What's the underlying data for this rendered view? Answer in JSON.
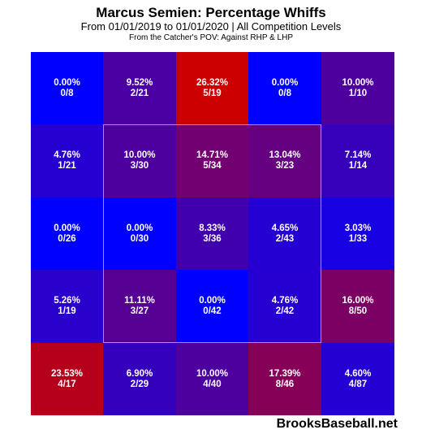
{
  "header": {
    "title": "Marcus Semien: Percentage Whiffs",
    "subtitle": "From 01/01/2019 to 01/01/2020 | All Competition Levels",
    "subtitle2": "From the Catcher's POV:   Against RHP & LHP"
  },
  "watermark": "BrooksBaseball.net",
  "chart_data": {
    "type": "heatmap",
    "title": "Marcus Semien: Percentage Whiffs",
    "rows": 5,
    "cols": 5,
    "strike_zone": "inner 3x3",
    "color_scale": {
      "low": "#0000ff",
      "high": "#cc0000",
      "max_pct": 26.32
    },
    "cells": [
      [
        {
          "pct": "0.00%",
          "count": "0/8",
          "v": 0.0
        },
        {
          "pct": "9.52%",
          "count": "2/21",
          "v": 9.52
        },
        {
          "pct": "26.32%",
          "count": "5/19",
          "v": 26.32
        },
        {
          "pct": "0.00%",
          "count": "0/8",
          "v": 0.0
        },
        {
          "pct": "10.00%",
          "count": "1/10",
          "v": 10.0
        }
      ],
      [
        {
          "pct": "4.76%",
          "count": "1/21",
          "v": 4.76
        },
        {
          "pct": "10.00%",
          "count": "3/30",
          "v": 10.0
        },
        {
          "pct": "14.71%",
          "count": "5/34",
          "v": 14.71
        },
        {
          "pct": "13.04%",
          "count": "3/23",
          "v": 13.04
        },
        {
          "pct": "7.14%",
          "count": "1/14",
          "v": 7.14
        }
      ],
      [
        {
          "pct": "0.00%",
          "count": "0/26",
          "v": 0.0
        },
        {
          "pct": "0.00%",
          "count": "0/30",
          "v": 0.0
        },
        {
          "pct": "8.33%",
          "count": "3/36",
          "v": 8.33
        },
        {
          "pct": "4.65%",
          "count": "2/43",
          "v": 4.65
        },
        {
          "pct": "3.03%",
          "count": "1/33",
          "v": 3.03
        }
      ],
      [
        {
          "pct": "5.26%",
          "count": "1/19",
          "v": 5.26
        },
        {
          "pct": "11.11%",
          "count": "3/27",
          "v": 11.11
        },
        {
          "pct": "0.00%",
          "count": "0/42",
          "v": 0.0
        },
        {
          "pct": "4.76%",
          "count": "2/42",
          "v": 4.76
        },
        {
          "pct": "16.00%",
          "count": "8/50",
          "v": 16.0
        }
      ],
      [
        {
          "pct": "23.53%",
          "count": "4/17",
          "v": 23.53
        },
        {
          "pct": "6.90%",
          "count": "2/29",
          "v": 6.9
        },
        {
          "pct": "10.00%",
          "count": "4/40",
          "v": 10.0
        },
        {
          "pct": "17.39%",
          "count": "8/46",
          "v": 17.39
        },
        {
          "pct": "4.60%",
          "count": "4/87",
          "v": 4.6
        }
      ]
    ]
  }
}
